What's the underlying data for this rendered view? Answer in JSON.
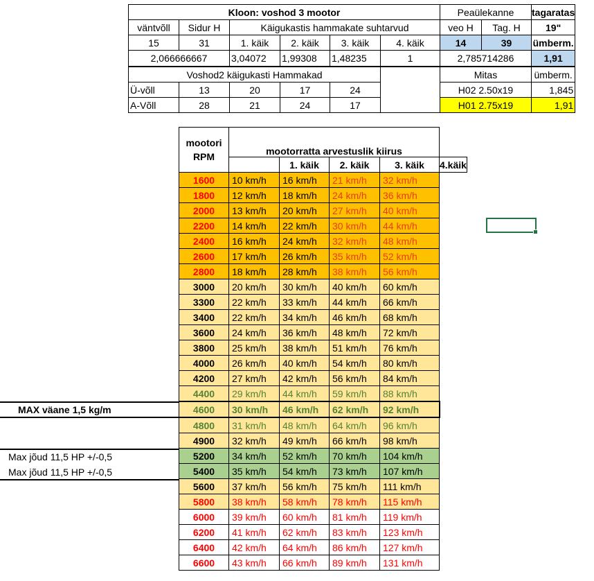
{
  "top": {
    "title": "Kloon: voshod 3 mootor",
    "peaulekanne": "Peaülekanne",
    "tagaratas": "tagaratas",
    "col_vantvoll": "väntvõll",
    "col_sidur": "Sidur H",
    "col_kaigukastis": "Käigukastis hammakate suhtarvud",
    "col_veo": "veo H",
    "col_tag": "Tag. H",
    "col_19": "19\"",
    "v_15": "15",
    "v_31": "31",
    "g1": "1. käik",
    "g2": "2. käik",
    "g3": "3. käik",
    "g4": "4. käik",
    "v_14": "14",
    "v_39": "39",
    "umberm": "ümberm.",
    "ratio_primary": "2,066666667",
    "r1": "3,04072",
    "r2": "1,99308",
    "r3": "1,48235",
    "r4": "1",
    "ratio_final": "2,785714286",
    "umberm_val": "1,91",
    "voshod2": "Voshod2 käigukasti Hammakad",
    "mitas": "Mitas",
    "umberm2": "ümberm.",
    "u_voll": "Ü-võll",
    "u_vals": [
      "13",
      "20",
      "17",
      "24"
    ],
    "a_voll": "A-Võll",
    "a_vals": [
      "28",
      "21",
      "24",
      "17"
    ],
    "tire1": "H02 2.50x19",
    "tire1_val": "1,845",
    "tire2": "H01 2.75x19",
    "tire2_val": "1,91"
  },
  "main": {
    "hdr_rpm": "mootori RPM",
    "hdr_speed": "mootorratta arvestuslik kiirus",
    "gears": [
      "1. käik",
      "2. käik",
      "3. käik",
      "4.käik"
    ],
    "rows": [
      {
        "rpm": "1600",
        "s": [
          "10 km/h",
          "16 km/h",
          "21 km/h",
          "32 km/h"
        ]
      },
      {
        "rpm": "1800",
        "s": [
          "12 km/h",
          "18 km/h",
          "24 km/h",
          "36 km/h"
        ]
      },
      {
        "rpm": "2000",
        "s": [
          "13 km/h",
          "20 km/h",
          "27 km/h",
          "40 km/h"
        ]
      },
      {
        "rpm": "2200",
        "s": [
          "14 km/h",
          "22 km/h",
          "30 km/h",
          "44 km/h"
        ]
      },
      {
        "rpm": "2400",
        "s": [
          "16 km/h",
          "24 km/h",
          "32 km/h",
          "48 km/h"
        ]
      },
      {
        "rpm": "2600",
        "s": [
          "17 km/h",
          "26 km/h",
          "35 km/h",
          "52 km/h"
        ]
      },
      {
        "rpm": "2800",
        "s": [
          "18 km/h",
          "28 km/h",
          "38 km/h",
          "56 km/h"
        ]
      },
      {
        "rpm": "3000",
        "s": [
          "20 km/h",
          "30 km/h",
          "40 km/h",
          "60 km/h"
        ]
      },
      {
        "rpm": "3300",
        "s": [
          "22 km/h",
          "33 km/h",
          "44 km/h",
          "66 km/h"
        ]
      },
      {
        "rpm": "3400",
        "s": [
          "22 km/h",
          "34 km/h",
          "46 km/h",
          "68 km/h"
        ]
      },
      {
        "rpm": "3600",
        "s": [
          "24 km/h",
          "36 km/h",
          "48 km/h",
          "72 km/h"
        ]
      },
      {
        "rpm": "3800",
        "s": [
          "25 km/h",
          "38 km/h",
          "51 km/h",
          "76 km/h"
        ]
      },
      {
        "rpm": "4000",
        "s": [
          "26 km/h",
          "40 km/h",
          "54 km/h",
          "80 km/h"
        ]
      },
      {
        "rpm": "4200",
        "s": [
          "27 km/h",
          "42 km/h",
          "56 km/h",
          "84 km/h"
        ]
      },
      {
        "rpm": "4400",
        "s": [
          "29 km/h",
          "44 km/h",
          "59 km/h",
          "88 km/h"
        ]
      },
      {
        "rpm": "4600",
        "s": [
          "30 km/h",
          "46 km/h",
          "62 km/h",
          "92 km/h"
        ]
      },
      {
        "rpm": "4800",
        "s": [
          "31 km/h",
          "48 km/h",
          "64 km/h",
          "96 km/h"
        ]
      },
      {
        "rpm": "4900",
        "s": [
          "32 km/h",
          "49 km/h",
          "66 km/h",
          "98 km/h"
        ]
      },
      {
        "rpm": "5200",
        "s": [
          "34 km/h",
          "52 km/h",
          "70 km/h",
          "104 km/h"
        ]
      },
      {
        "rpm": "5400",
        "s": [
          "35 km/h",
          "54 km/h",
          "73 km/h",
          "107 km/h"
        ]
      },
      {
        "rpm": "5600",
        "s": [
          "37 km/h",
          "56 km/h",
          "75 km/h",
          "111 km/h"
        ]
      },
      {
        "rpm": "5800",
        "s": [
          "38 km/h",
          "58 km/h",
          "78 km/h",
          "115 km/h"
        ]
      },
      {
        "rpm": "6000",
        "s": [
          "39 km/h",
          "60 km/h",
          "81 km/h",
          "119 km/h"
        ]
      },
      {
        "rpm": "6200",
        "s": [
          "41 km/h",
          "62 km/h",
          "83 km/h",
          "123 km/h"
        ]
      },
      {
        "rpm": "6400",
        "s": [
          "42 km/h",
          "64 km/h",
          "86 km/h",
          "127 km/h"
        ]
      },
      {
        "rpm": "6600",
        "s": [
          "43 km/h",
          "66 km/h",
          "89 km/h",
          "131 km/h"
        ]
      }
    ]
  },
  "side": {
    "max_torque": "MAX väane 1,5 kg/m",
    "max_power_1": "Max jõud 11,5 HP +/-0,5",
    "max_power_2": "Max jõud 11,5 HP +/-0,5"
  },
  "colors": {
    "orange_dark": "#ffc000",
    "orange_light": "#ffe699",
    "green": "#a9d08e",
    "blue": "#bdd7ee",
    "yellow": "#ffff00",
    "red": "#ff0000",
    "olive": "#548235",
    "selection": "#217346"
  }
}
